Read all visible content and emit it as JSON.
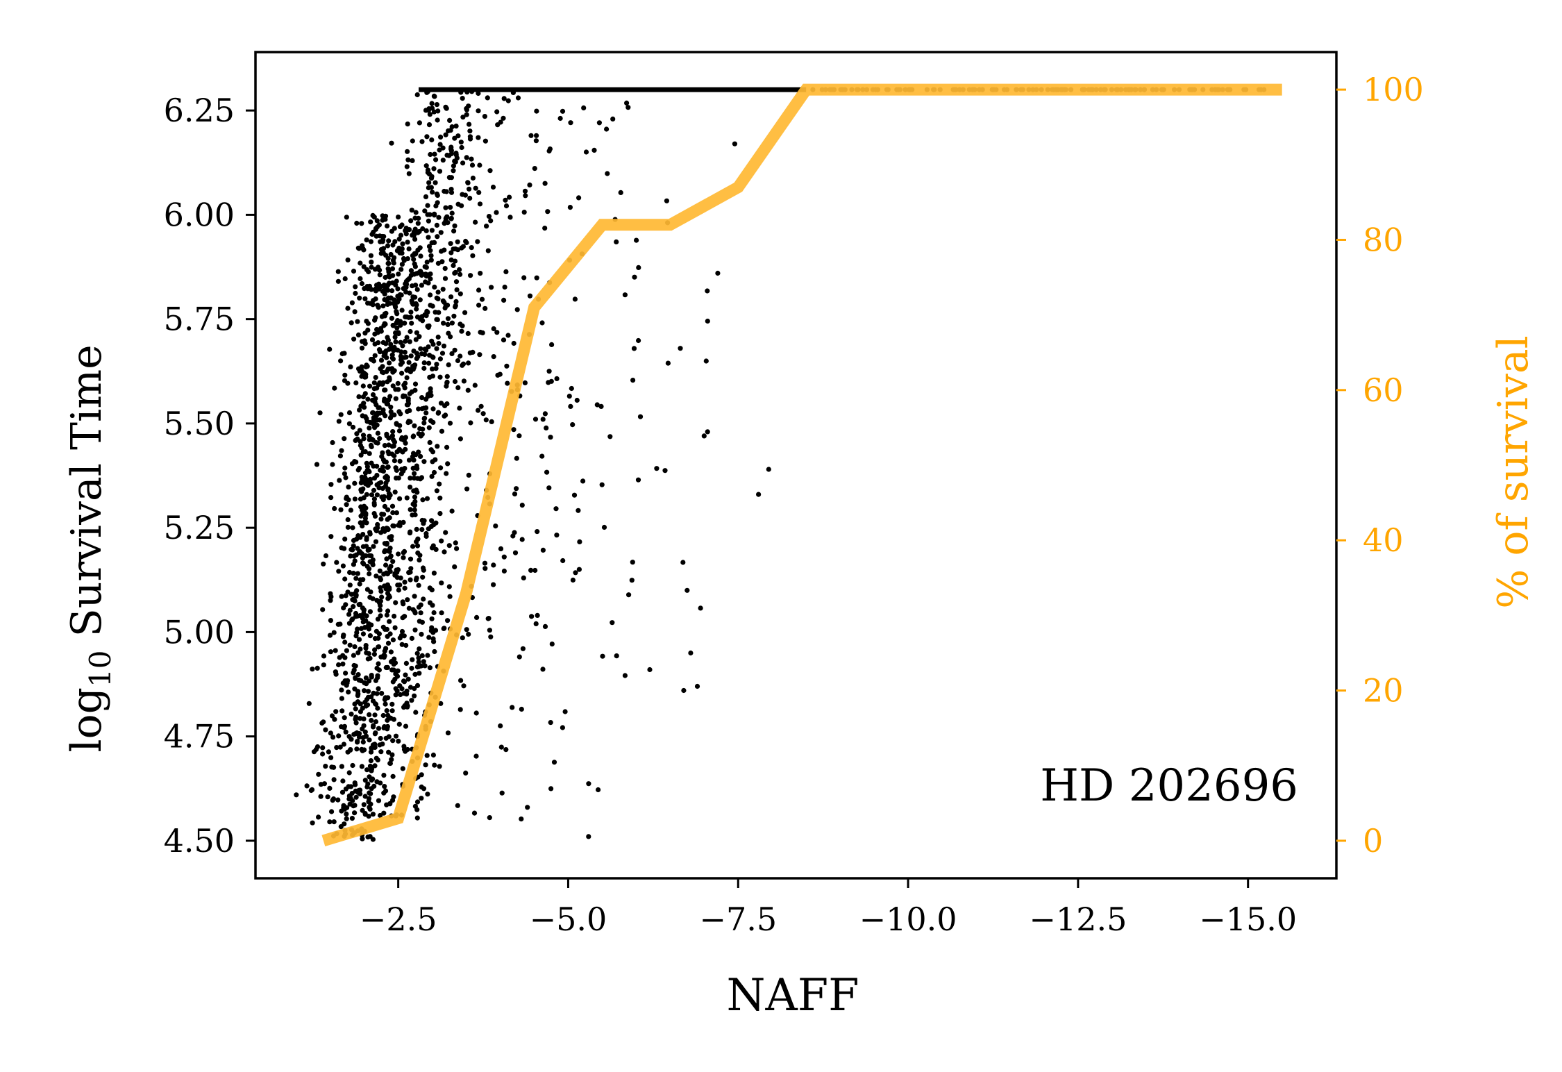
{
  "chart_data": {
    "type": "scatter",
    "annotation": "HD 202696",
    "xlabel": "NAFF",
    "ylabel_main": "log",
    "ylabel_sub": "10",
    "ylabel_rest": " Survival Time",
    "y2label": "% of survival",
    "xlim": [
      -0.4,
      -16.3
    ],
    "ylim": [
      4.41,
      6.39
    ],
    "y2lim": [
      -5,
      105
    ],
    "x_ticks": [
      -2.5,
      -5.0,
      -7.5,
      -10.0,
      -12.5,
      -15.0
    ],
    "x_tick_labels": [
      "−2.5",
      "−5.0",
      "−7.5",
      "−10.0",
      "−12.5",
      "−15.0"
    ],
    "y_ticks": [
      4.5,
      4.75,
      5.0,
      5.25,
      5.5,
      5.75,
      6.0,
      6.25
    ],
    "y_tick_labels": [
      "4.50",
      "4.75",
      "5.00",
      "5.25",
      "5.50",
      "5.75",
      "6.00",
      "6.25"
    ],
    "y2_ticks": [
      0,
      20,
      40,
      60,
      80,
      100
    ],
    "y2_tick_labels": [
      "0",
      "20",
      "40",
      "60",
      "80",
      "100"
    ],
    "colors": {
      "points": "#000000",
      "survival_line": "#ffb833",
      "right_axis": "#ffa500",
      "axes": "#000000"
    },
    "series": [
      {
        "role": "survival_percent",
        "axis": "right",
        "x": [
          -1.4,
          -2.5,
          -3.5,
          -4.5,
          -5.5,
          -6.5,
          -7.5,
          -8.5,
          -15.5
        ],
        "y": [
          0,
          3,
          33,
          71,
          82,
          82,
          87,
          100,
          100
        ]
      }
    ],
    "scatter_clusters": [
      {
        "x_center": -2.6,
        "x_spread": 0.55,
        "y_min": 4.5,
        "y_max": 6.0,
        "count": 1100
      },
      {
        "x_center": -3.3,
        "x_spread": 0.55,
        "y_min": 4.55,
        "y_max": 6.3,
        "count": 650
      },
      {
        "x_center": -4.6,
        "x_spread": 1.0,
        "y_min": 4.55,
        "y_max": 6.3,
        "count": 180
      },
      {
        "x_center": -6.4,
        "x_spread": 1.0,
        "y_min": 4.6,
        "y_max": 6.3,
        "count": 45
      }
    ],
    "scatter_outliers": [
      [
        -1.0,
        4.61
      ],
      [
        -7.2,
        5.86
      ],
      [
        -7.8,
        5.33
      ],
      [
        -7.95,
        5.39
      ],
      [
        -7.0,
        5.47
      ],
      [
        -7.05,
        5.48
      ],
      [
        -6.9,
        4.87
      ],
      [
        -6.7,
        4.86
      ],
      [
        -6.75,
        5.1
      ],
      [
        -5.3,
        4.51
      ],
      [
        -6.2,
        4.91
      ],
      [
        -4.4,
        4.58
      ],
      [
        -7.45,
        6.17
      ],
      [
        -6.65,
        5.68
      ]
    ],
    "survivor_band": {
      "y": 6.3,
      "x_start": -2.8,
      "x_end": -15.3,
      "dense_until": -8.5,
      "count_sparse": 130
    }
  }
}
